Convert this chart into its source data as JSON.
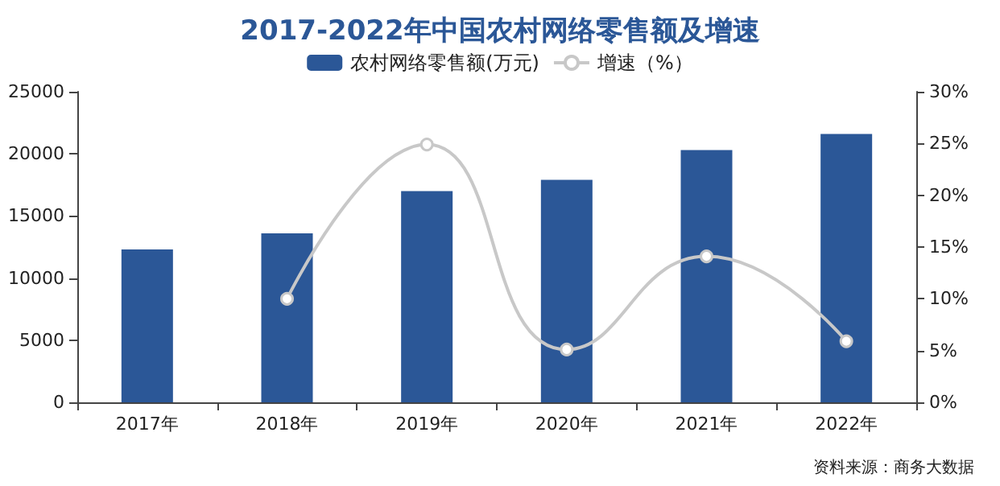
{
  "chart_data": {
    "type": "bar",
    "title": "2017-2022年中国农村网络零售额及增速",
    "categories": [
      "2017年",
      "2018年",
      "2019年",
      "2020年",
      "2021年",
      "2022年"
    ],
    "series": [
      {
        "name": "农村网络零售额(万元)",
        "color": "#2b5797",
        "values": [
          12300,
          13600,
          17000,
          17900,
          20300,
          21600
        ]
      },
      {
        "name": "增速（%）",
        "type": "line",
        "axis": "y2",
        "color": "#c8c8c8",
        "values": [
          null,
          10,
          24.9,
          5.1,
          14.1,
          5.9
        ]
      }
    ],
    "ylim": [
      0,
      25000
    ],
    "yticks": [
      0,
      5000,
      10000,
      15000,
      20000,
      25000
    ],
    "y2lim": [
      0,
      30
    ],
    "y2ticks": [
      {
        "value": 0,
        "label": "0%"
      },
      {
        "value": 5,
        "label": "5%"
      },
      {
        "value": 10,
        "label": "10%"
      },
      {
        "value": 15,
        "label": "15%"
      },
      {
        "value": 20,
        "label": "20%"
      },
      {
        "value": 25,
        "label": "25%"
      },
      {
        "value": 30,
        "label": "30%"
      }
    ],
    "grid": false,
    "legend": "top",
    "marker": "circle",
    "annotations": [
      "资料来源：商务大数据"
    ]
  }
}
